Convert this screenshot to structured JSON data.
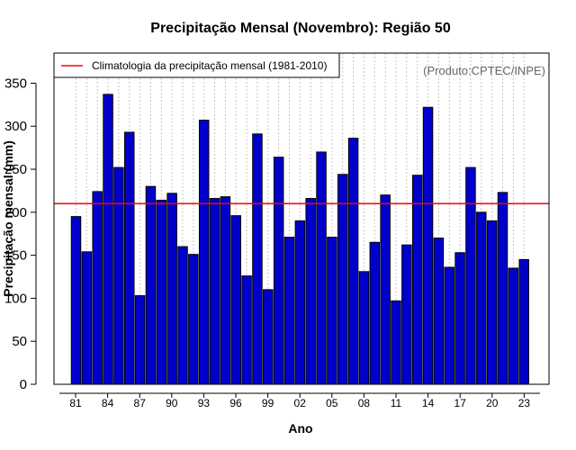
{
  "chart_data": {
    "type": "bar",
    "title": "Precipitação Mensal (Novembro): Região 50",
    "xlabel": "Ano",
    "ylabel": "Precipitação mensal (mm)",
    "ylim": [
      0,
      385
    ],
    "yticks": [
      0,
      50,
      100,
      150,
      200,
      250,
      300,
      350
    ],
    "x_tick_labels": [
      "81",
      "84",
      "87",
      "90",
      "93",
      "96",
      "99",
      "02",
      "05",
      "08",
      "11",
      "14",
      "17",
      "20",
      "23"
    ],
    "categories": [
      "1981",
      "1982",
      "1983",
      "1984",
      "1985",
      "1986",
      "1987",
      "1988",
      "1989",
      "1990",
      "1991",
      "1992",
      "1993",
      "1994",
      "1995",
      "1996",
      "1997",
      "1998",
      "1999",
      "2000",
      "2001",
      "2002",
      "2003",
      "2004",
      "2005",
      "2006",
      "2007",
      "2008",
      "2009",
      "2010",
      "2011",
      "2012",
      "2013",
      "2014",
      "2015",
      "2016",
      "2017",
      "2018",
      "2019",
      "2020",
      "2021",
      "2022",
      "2023"
    ],
    "values": [
      195,
      154,
      224,
      337,
      252,
      293,
      103,
      230,
      214,
      222,
      160,
      151,
      307,
      216,
      218,
      196,
      126,
      291,
      110,
      264,
      171,
      190,
      216,
      270,
      171,
      244,
      286,
      131,
      165,
      220,
      97,
      162,
      243,
      322,
      170,
      136,
      153,
      252,
      200,
      190,
      223,
      135,
      145
    ],
    "bar_color": "#0000cc",
    "climatology": {
      "label": "Climatologia da precipitação mensal (1981-2010)",
      "value": 210,
      "color": "#ff0000"
    },
    "legend_position": "top-left",
    "source_note": "(Produto:CPTEC/INPE)",
    "grid": "vertical dotted"
  }
}
